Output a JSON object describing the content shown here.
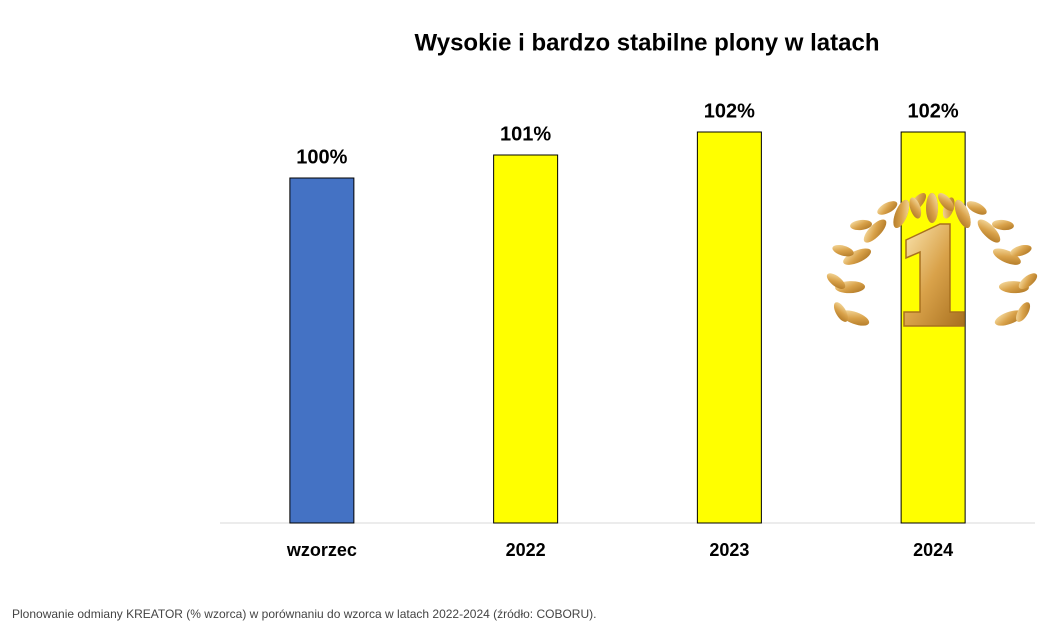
{
  "chart_data": {
    "type": "bar",
    "title": "Wysokie i bardzo stabilne plony w latach",
    "categories": [
      "wzorzec",
      "2022",
      "2023",
      "2024"
    ],
    "values": [
      100,
      101,
      102,
      102
    ],
    "value_labels": [
      "100%",
      "101%",
      "102%",
      "102%"
    ],
    "colors": [
      "#4472c4",
      "#ffff00",
      "#ffff00",
      "#ffff00"
    ],
    "ylim": [
      85,
      103
    ],
    "footnote": "Plonowanie odmiany KREATOR (% wzorca) w porównaniu do wzorca  w latach 2022-2024 (źródło: COBORU)."
  }
}
